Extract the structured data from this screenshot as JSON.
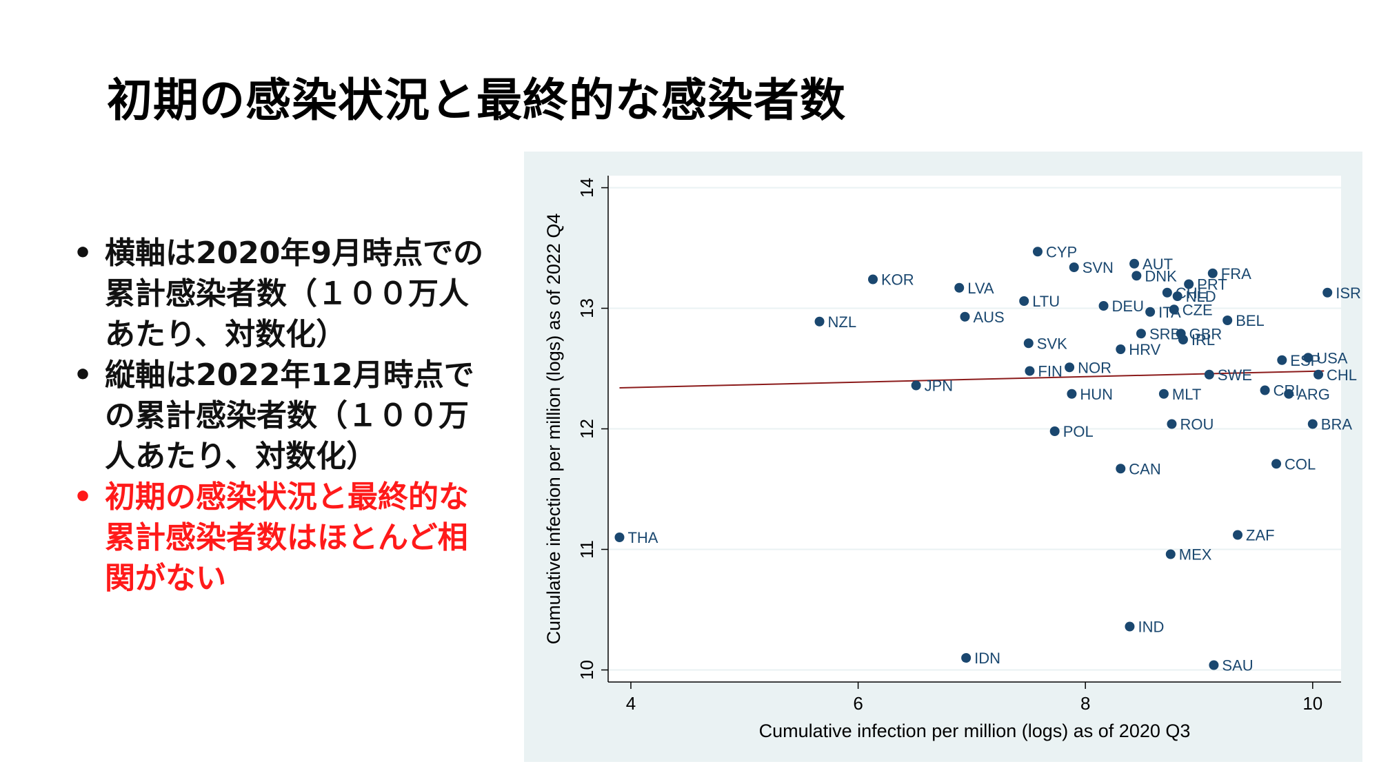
{
  "slide": {
    "title": "初期の感染状況と最終的な感染者数",
    "bullets": [
      {
        "text": "横軸は2020年9月時点での累計感染者数（１００万人あたり、対数化）",
        "color": "#111111"
      },
      {
        "text": "縦軸は2022年12月時点での累計感染者数（１００万人あたり、対数化）",
        "color": "#111111"
      },
      {
        "text": "初期の感染状況と最終的な累計感染者数はほとんど相関がない",
        "color": "#ff1a1a"
      }
    ]
  },
  "chart_data": {
    "type": "scatter",
    "title": "",
    "xlabel": "Cumulative infection per million (logs) as of 2020 Q3",
    "ylabel": "Cumulative infection per million (logs) as of 2022 Q4",
    "xlim": [
      3.8,
      10.25
    ],
    "ylim": [
      9.9,
      14.1
    ],
    "xticks": [
      4,
      6,
      8,
      10
    ],
    "yticks": [
      10,
      11,
      12,
      13,
      14
    ],
    "grid": "horizontal",
    "marker_color": "#1a476f",
    "fit_color": "#8b1a1a",
    "fit_line": {
      "x": [
        3.9,
        10.1
      ],
      "y": [
        12.34,
        12.48
      ]
    },
    "points": [
      {
        "label": "THA",
        "x": 3.9,
        "y": 11.1
      },
      {
        "label": "NZL",
        "x": 5.66,
        "y": 12.89
      },
      {
        "label": "KOR",
        "x": 6.13,
        "y": 13.24
      },
      {
        "label": "JPN",
        "x": 6.51,
        "y": 12.36
      },
      {
        "label": "LVA",
        "x": 6.89,
        "y": 13.17
      },
      {
        "label": "AUS",
        "x": 6.94,
        "y": 12.93
      },
      {
        "label": "IDN",
        "x": 6.95,
        "y": 10.1
      },
      {
        "label": "LTU",
        "x": 7.46,
        "y": 13.06
      },
      {
        "label": "SVK",
        "x": 7.5,
        "y": 12.71
      },
      {
        "label": "FIN",
        "x": 7.51,
        "y": 12.48
      },
      {
        "label": "CYP",
        "x": 7.58,
        "y": 13.47
      },
      {
        "label": "POL",
        "x": 7.73,
        "y": 11.98
      },
      {
        "label": "NOR",
        "x": 7.86,
        "y": 12.51
      },
      {
        "label": "HUN",
        "x": 7.88,
        "y": 12.29
      },
      {
        "label": "SVN",
        "x": 7.9,
        "y": 13.34
      },
      {
        "label": "DEU",
        "x": 8.16,
        "y": 13.02
      },
      {
        "label": "HRV",
        "x": 8.31,
        "y": 12.66
      },
      {
        "label": "CAN",
        "x": 8.31,
        "y": 11.67
      },
      {
        "label": "IND",
        "x": 8.39,
        "y": 10.36
      },
      {
        "label": "AUT",
        "x": 8.43,
        "y": 13.37
      },
      {
        "label": "DNK",
        "x": 8.45,
        "y": 13.27
      },
      {
        "label": "SRB",
        "x": 8.49,
        "y": 12.79
      },
      {
        "label": "ITA",
        "x": 8.57,
        "y": 12.97
      },
      {
        "label": "MLT",
        "x": 8.69,
        "y": 12.29
      },
      {
        "label": "CHE",
        "x": 8.72,
        "y": 13.13
      },
      {
        "label": "MEX",
        "x": 8.75,
        "y": 10.96
      },
      {
        "label": "ROU",
        "x": 8.76,
        "y": 12.04
      },
      {
        "label": "CZE",
        "x": 8.78,
        "y": 12.99
      },
      {
        "label": "NLD",
        "x": 8.81,
        "y": 13.1
      },
      {
        "label": "GBR",
        "x": 8.84,
        "y": 12.79
      },
      {
        "label": "IRL",
        "x": 8.86,
        "y": 12.74
      },
      {
        "label": "PRT",
        "x": 8.91,
        "y": 13.2
      },
      {
        "label": "SWE",
        "x": 9.09,
        "y": 12.45
      },
      {
        "label": "FRA",
        "x": 9.12,
        "y": 13.29
      },
      {
        "label": "SAU",
        "x": 9.13,
        "y": 10.04
      },
      {
        "label": "BEL",
        "x": 9.25,
        "y": 12.9
      },
      {
        "label": "ZAF",
        "x": 9.34,
        "y": 11.12
      },
      {
        "label": "CRI",
        "x": 9.58,
        "y": 12.32
      },
      {
        "label": "COL",
        "x": 9.68,
        "y": 11.71
      },
      {
        "label": "ESP",
        "x": 9.73,
        "y": 12.57
      },
      {
        "label": "ARG",
        "x": 9.79,
        "y": 12.29
      },
      {
        "label": "USA",
        "x": 9.96,
        "y": 12.59
      },
      {
        "label": "BRA",
        "x": 10.0,
        "y": 12.04
      },
      {
        "label": "CHL",
        "x": 10.05,
        "y": 12.45
      },
      {
        "label": "ISR",
        "x": 10.13,
        "y": 13.13
      }
    ]
  }
}
